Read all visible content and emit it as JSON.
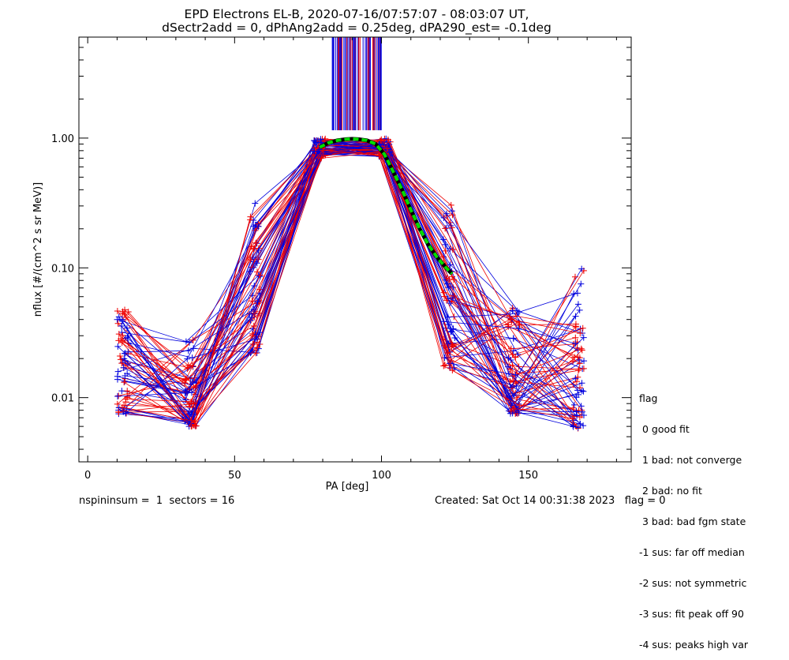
{
  "title_line1": "EPD Electrons EL-B, 2020-07-16/07:57:07 - 08:03:07 UT,",
  "title_line2": "dSectr2add = 0, dPhAng2add = 0.25deg, dPA290_est=  -0.1deg",
  "footer": {
    "left": "nspininsum =  1  sectors = 16",
    "right": "Created: Sat Oct 14 00:31:38 2023   flag = 0"
  },
  "legend": {
    "title": "flag",
    "items": [
      " 0 good fit",
      " 1 bad: not converge",
      " 2 bad: no fit",
      " 3 bad: bad fgm state",
      "-1 sus: far off median",
      "-2 sus: not symmetric",
      "-3 sus: fit peak off 90",
      "-4 sus: peaks high var"
    ]
  },
  "colors": {
    "red_series": "#ee0000",
    "blue_series": "#0000dd",
    "fit_curve": "#00dd00",
    "fit_core": "#000000"
  },
  "chart_data": {
    "type": "line",
    "xlabel": "PA [deg]",
    "ylabel": "nflux [#/(cm^2 s sr MeV)]",
    "xlim": [
      -3,
      185
    ],
    "ylim": [
      0.0032,
      6.0
    ],
    "y_scale": "log",
    "x_ticks": [
      0,
      50,
      100,
      150
    ],
    "x_tick_labels": [
      "0",
      "50",
      "100",
      "150"
    ],
    "y_ticks": [
      0.01,
      0.1,
      1.0
    ],
    "y_tick_labels": [
      "0.01",
      "0.10",
      "1.00"
    ],
    "pa_bins": [
      12,
      35,
      57,
      79,
      101,
      123,
      145,
      167
    ],
    "envelope": {
      "description_free": true,
      "min": [
        0.0075,
        0.006,
        0.022,
        0.45,
        0.48,
        0.016,
        0.0075,
        0.0058
      ],
      "max": [
        0.05,
        0.03,
        0.32,
        1.0,
        1.0,
        0.35,
        0.05,
        0.1
      ]
    },
    "vertical_spikes_pa_range": [
      83,
      100
    ],
    "fit_curve": {
      "pa": [
        79,
        82,
        85,
        88,
        90,
        92,
        95,
        98,
        101,
        104,
        107,
        110,
        113,
        116,
        119,
        122,
        124
      ],
      "flux": [
        0.85,
        0.92,
        0.96,
        0.98,
        0.985,
        0.98,
        0.96,
        0.9,
        0.75,
        0.55,
        0.4,
        0.28,
        0.2,
        0.15,
        0.12,
        0.1,
        0.09
      ]
    },
    "grid": false,
    "legend_placement": "right-bottom outside"
  }
}
